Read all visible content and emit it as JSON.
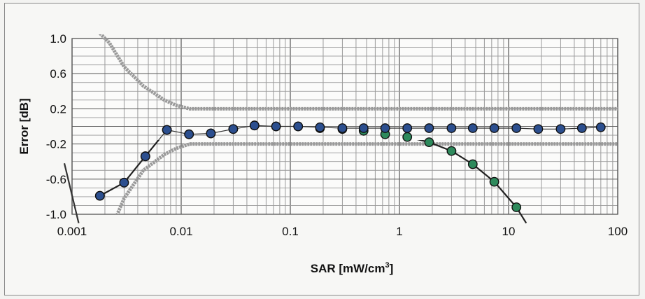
{
  "chart_data": {
    "type": "line",
    "title": "",
    "xlabel": "SAR [mW/cm",
    "xlabel_sup": "3",
    "xlabel_end": "]",
    "ylabel": "Error [dB]",
    "x_scale": "log",
    "xlim": [
      0.001,
      100
    ],
    "ylim": [
      -1.0,
      1.0
    ],
    "grid": true,
    "legend": "none",
    "x_ticks": [
      {
        "value": 0.001,
        "label": "0.001"
      },
      {
        "value": 0.01,
        "label": "0.01"
      },
      {
        "value": 0.1,
        "label": "0.1"
      },
      {
        "value": 1,
        "label": "1"
      },
      {
        "value": 10,
        "label": "10"
      },
      {
        "value": 100,
        "label": "100"
      }
    ],
    "y_ticks": [
      {
        "value": 1.0,
        "label": "1.0"
      },
      {
        "value": 0.6,
        "label": "0.6"
      },
      {
        "value": 0.2,
        "label": "0.2"
      },
      {
        "value": -0.2,
        "label": "-0.2"
      },
      {
        "value": -0.6,
        "label": "-0.6"
      },
      {
        "value": -1.0,
        "label": "-1.0"
      }
    ],
    "series": [
      {
        "color": "#2c4f8f",
        "style": "line-with-markers",
        "x": [
          0.0018,
          0.003,
          0.0047,
          0.0074,
          0.0118,
          0.0187,
          0.03,
          0.047,
          0.074,
          0.118,
          0.187,
          0.3,
          0.47,
          0.74,
          1.18,
          1.87,
          3.0,
          4.7,
          7.4,
          11.8,
          18.7,
          30,
          47,
          70
        ],
        "y": [
          -0.79,
          -0.64,
          -0.34,
          -0.04,
          -0.09,
          -0.08,
          -0.03,
          0.01,
          0.0,
          0.0,
          -0.01,
          -0.02,
          -0.02,
          -0.02,
          -0.02,
          -0.02,
          -0.02,
          -0.02,
          -0.02,
          -0.02,
          -0.03,
          -0.03,
          -0.02,
          -0.01
        ]
      },
      {
        "color": "#2e8a5c",
        "style": "line-with-markers",
        "x": [
          0.0018,
          0.003,
          0.0047,
          0.0074,
          0.0118,
          0.0187,
          0.03,
          0.047,
          0.074,
          0.118,
          0.187,
          0.3,
          0.47,
          0.74,
          1.18,
          1.87,
          3.0,
          4.7,
          7.4,
          11.8
        ],
        "y": [
          -0.79,
          -0.64,
          -0.34,
          -0.04,
          -0.09,
          -0.08,
          -0.03,
          0.01,
          0.0,
          0.0,
          -0.02,
          -0.03,
          -0.05,
          -0.09,
          -0.12,
          -0.18,
          -0.28,
          -0.43,
          -0.63,
          -0.92
        ]
      },
      {
        "color": "#222222",
        "style": "fit-line",
        "x": [
          0.0018,
          0.003,
          0.0047,
          0.0074,
          0.0118,
          0.0187,
          0.03,
          0.047,
          0.074,
          0.118,
          0.187,
          0.3,
          0.47,
          0.74,
          1.18,
          1.87,
          3.0,
          4.7,
          7.4,
          11.8,
          14.5
        ],
        "y": [
          -0.79,
          -0.64,
          -0.34,
          -0.04,
          -0.09,
          -0.08,
          -0.03,
          0.01,
          0.0,
          0.0,
          -0.02,
          -0.03,
          -0.05,
          -0.09,
          -0.12,
          -0.18,
          -0.28,
          -0.43,
          -0.63,
          -0.92,
          -1.1
        ]
      },
      {
        "color": "#333333",
        "style": "fit-line",
        "x": [
          0.00085,
          0.00115
        ],
        "y": [
          -0.42,
          -1.1
        ]
      },
      {
        "color": "#9a9a9a",
        "style": "tolerance-band",
        "x": [
          0.0018,
          0.0022,
          0.003,
          0.0045,
          0.007,
          0.009,
          0.012,
          100
        ],
        "y": [
          1.06,
          0.95,
          0.68,
          0.46,
          0.3,
          0.24,
          0.2,
          0.2
        ]
      },
      {
        "color": "#9a9a9a",
        "style": "tolerance-band",
        "x": [
          0.0024,
          0.003,
          0.0045,
          0.007,
          0.009,
          0.012,
          100
        ],
        "y": [
          -1.1,
          -0.82,
          -0.5,
          -0.32,
          -0.25,
          -0.2,
          -0.2
        ]
      }
    ]
  }
}
